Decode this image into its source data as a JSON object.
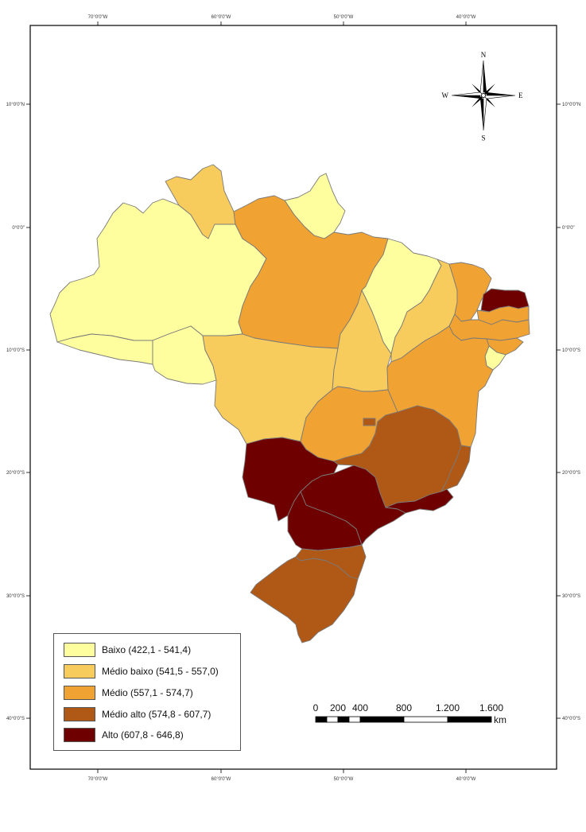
{
  "axes": {
    "top_ticks": [
      "70°0'0\"W",
      "60°0'0\"W",
      "50°0'0\"W",
      "40°0'0\"W"
    ],
    "bottom_ticks": [
      "70°0'0\"W",
      "60°0'0\"W",
      "50°0'0\"W",
      "40°0'0\"W"
    ],
    "left_ticks": [
      "10°0'0\"N",
      "0°0'0\"",
      "10°0'0\"S",
      "20°0'0\"S",
      "30°0'0\"S",
      "40°0'0\"S"
    ],
    "right_ticks": [
      "10°0'0\"N",
      "0°0'0\"",
      "10°0'0\"S",
      "20°0'0\"S",
      "30°0'0\"S",
      "40°0'0\"S"
    ]
  },
  "compass": {
    "north": "N",
    "south": "S",
    "east": "E",
    "west": "W"
  },
  "legend": {
    "items": [
      {
        "label": "Baixo (422,1 - 541,4)",
        "color": "#fefe9e"
      },
      {
        "label": "Médio baixo (541,5 - 557,0)",
        "color": "#f8cc5c"
      },
      {
        "label": "Médio (557,1 - 574,7)",
        "color": "#f0a232"
      },
      {
        "label": "Médio alto (574,8 - 607,7)",
        "color": "#b05816"
      },
      {
        "label": "Alto (607,8 - 646,8)",
        "color": "#6e0000"
      }
    ]
  },
  "scale_bar": {
    "labels": [
      "0",
      "200",
      "400",
      "800",
      "1.200",
      "1.600"
    ],
    "unit": "km"
  },
  "regions": {
    "roraima": {
      "color": "#f8cc5c"
    },
    "amapa": {
      "color": "#fefe9e"
    },
    "amazonas": {
      "color": "#fefe9e"
    },
    "acre": {
      "color": "#fefe9e"
    },
    "rondonia": {
      "color": "#fefe9e"
    },
    "para": {
      "color": "#f0a232"
    },
    "maranhao": {
      "color": "#fefe9e"
    },
    "piaui": {
      "color": "#f8cc5c"
    },
    "ceara": {
      "color": "#f0a232"
    },
    "rio_grande_do_norte": {
      "color": "#6e0000"
    },
    "paraiba": {
      "color": "#f0a232"
    },
    "pernambuco": {
      "color": "#f0a232"
    },
    "alagoas": {
      "color": "#f0a232"
    },
    "sergipe": {
      "color": "#fefe9e"
    },
    "bahia": {
      "color": "#f0a232"
    },
    "tocantins": {
      "color": "#f8cc5c"
    },
    "mato_grosso": {
      "color": "#f8cc5c"
    },
    "goias": {
      "color": "#f0a232"
    },
    "distrito_federal": {
      "color": "#b05816"
    },
    "minas_gerais": {
      "color": "#b05816"
    },
    "espirito_santo": {
      "color": "#b05816"
    },
    "rio_de_janeiro": {
      "color": "#6e0000"
    },
    "sao_paulo": {
      "color": "#6e0000"
    },
    "mato_grosso_do_sul": {
      "color": "#6e0000"
    },
    "parana": {
      "color": "#6e0000"
    },
    "santa_catarina": {
      "color": "#b05816"
    },
    "rio_grande_do_sul": {
      "color": "#b05816"
    }
  }
}
